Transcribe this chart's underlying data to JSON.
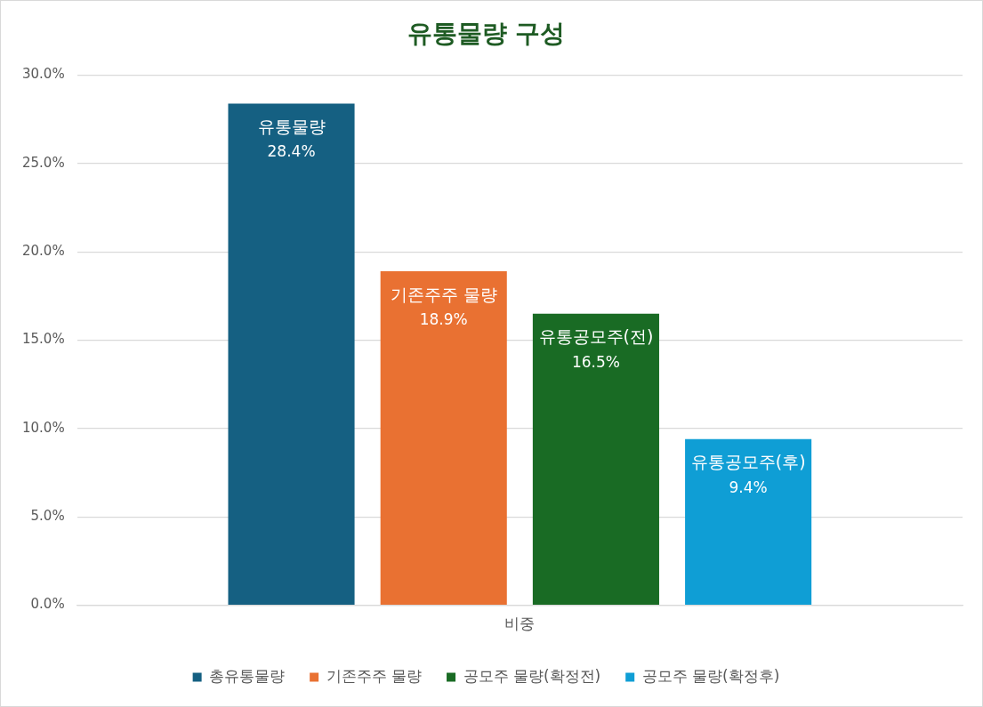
{
  "chart_data": {
    "type": "bar",
    "title": "유통물량 구성",
    "categories": [
      "비중"
    ],
    "series": [
      {
        "name": "총유통물량",
        "color": "#156082",
        "values": [
          28.4
        ],
        "value_labels": [
          "유통물량\n28.4%"
        ]
      },
      {
        "name": "기존주주 물량",
        "color": "#e97132",
        "values": [
          18.9
        ],
        "value_labels": [
          "기존주주 물량\n18.9%"
        ]
      },
      {
        "name": "공모주 물량(확정전)",
        "color": "#196b24",
        "values": [
          16.5
        ],
        "value_labels": [
          "유통공모주(전)\n16.5%"
        ]
      },
      {
        "name": "공모주 물량(확정후)",
        "color": "#0f9ed5",
        "values": [
          9.4
        ],
        "value_labels": [
          "유통공모주(후)\n9.4%"
        ]
      }
    ],
    "ylim": [
      0,
      30
    ],
    "yticks": [
      {
        "value": 0,
        "label": "0.0%"
      },
      {
        "value": 5,
        "label": "5.0%"
      },
      {
        "value": 10,
        "label": "10.0%"
      },
      {
        "value": 15,
        "label": "15.0%"
      },
      {
        "value": 20,
        "label": "20.0%"
      },
      {
        "value": 25,
        "label": "25.0%"
      },
      {
        "value": 30,
        "label": "30.0%"
      }
    ],
    "grid": "y",
    "legend": "bottom"
  }
}
